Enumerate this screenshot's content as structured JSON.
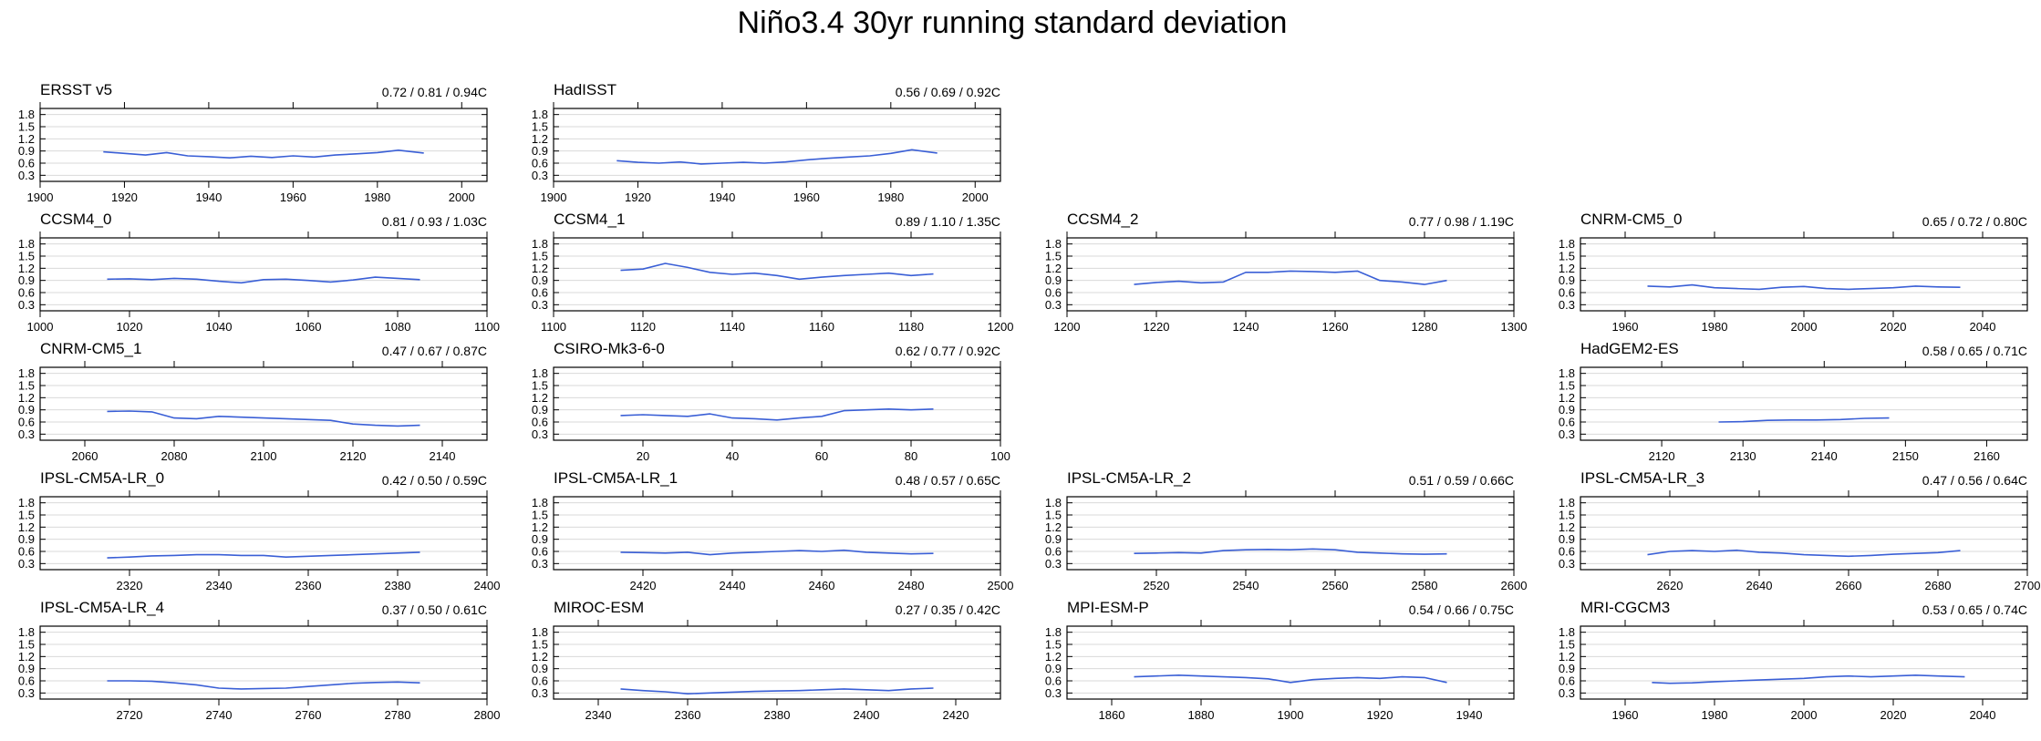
{
  "figure": {
    "title": "Niño3.4 30yr running standard deviation",
    "colors": {
      "line": "#3a5fd6",
      "grid": "#d9d9d9",
      "frame": "#000000"
    }
  },
  "chart_data": [
    {
      "type": "line",
      "panel_index": 0,
      "name": "ERSST v5",
      "stats": "0.72 / 0.81 / 0.94C",
      "ylim": [
        0.15,
        1.95
      ],
      "yticks": [
        "0.3",
        "0.6",
        "0.9",
        "1.2",
        "1.5",
        "1.8"
      ],
      "xlim": [
        1900,
        2006
      ],
      "xticks": [
        "1900",
        "1940",
        "1920",
        "1960",
        "1980",
        "2000"
      ],
      "x": [
        1915,
        1920,
        1925,
        1930,
        1935,
        1940,
        1945,
        1950,
        1955,
        1960,
        1965,
        1970,
        1975,
        1980,
        1985,
        1991
      ],
      "y": [
        0.88,
        0.84,
        0.8,
        0.86,
        0.78,
        0.76,
        0.73,
        0.77,
        0.74,
        0.78,
        0.75,
        0.8,
        0.83,
        0.86,
        0.92,
        0.85
      ]
    },
    {
      "type": "line",
      "panel_index": 1,
      "name": "HadISST",
      "stats": "0.56 / 0.69 / 0.92C",
      "ylim": [
        0.15,
        1.95
      ],
      "yticks": [
        "0.3",
        "0.6",
        "0.9",
        "1.2",
        "1.5",
        "1.8"
      ],
      "xlim": [
        1900,
        2006
      ],
      "xticks": [
        "1900",
        "1920",
        "1940",
        "1960",
        "1980",
        "2000"
      ],
      "x": [
        1915,
        1920,
        1925,
        1930,
        1935,
        1940,
        1945,
        1950,
        1955,
        1960,
        1965,
        1970,
        1975,
        1980,
        1985,
        1991
      ],
      "y": [
        0.66,
        0.62,
        0.6,
        0.63,
        0.58,
        0.6,
        0.62,
        0.6,
        0.63,
        0.68,
        0.72,
        0.75,
        0.78,
        0.84,
        0.93,
        0.85
      ]
    },
    {
      "type": "line",
      "panel_index": 4,
      "name": "CCSM4_0",
      "stats": "0.81 / 0.93 / 1.03C",
      "ylim": [
        0.15,
        1.95
      ],
      "yticks": [
        "0.3",
        "0.6",
        "0.9",
        "1.2",
        "1.5",
        "1.8"
      ],
      "xlim": [
        1000,
        1100
      ],
      "xticks": [
        "1000",
        "1020",
        "1040",
        "1060",
        "1080",
        "1100"
      ],
      "x": [
        1015,
        1020,
        1025,
        1030,
        1035,
        1040,
        1045,
        1050,
        1055,
        1060,
        1065,
        1070,
        1075,
        1080,
        1085
      ],
      "y": [
        0.93,
        0.94,
        0.92,
        0.95,
        0.93,
        0.88,
        0.84,
        0.92,
        0.93,
        0.9,
        0.86,
        0.91,
        0.98,
        0.95,
        0.92
      ]
    },
    {
      "type": "line",
      "panel_index": 5,
      "name": "CCSM4_1",
      "stats": "0.89 / 1.10 / 1.35C",
      "ylim": [
        0.15,
        1.95
      ],
      "yticks": [
        "0.3",
        "0.6",
        "0.9",
        "1.2",
        "1.5",
        "1.8"
      ],
      "xlim": [
        1100,
        1200
      ],
      "xticks": [
        "1100",
        "1120",
        "1140",
        "1160",
        "1180",
        "1200"
      ],
      "x": [
        1115,
        1120,
        1125,
        1130,
        1135,
        1140,
        1145,
        1150,
        1155,
        1160,
        1165,
        1170,
        1175,
        1180,
        1185
      ],
      "y": [
        1.15,
        1.18,
        1.32,
        1.22,
        1.1,
        1.05,
        1.08,
        1.02,
        0.93,
        0.98,
        1.02,
        1.05,
        1.08,
        1.02,
        1.06
      ]
    },
    {
      "type": "line",
      "panel_index": 6,
      "name": "CCSM4_2",
      "stats": "0.77 / 0.98 / 1.19C",
      "ylim": [
        0.15,
        1.95
      ],
      "yticks": [
        "0.3",
        "0.6",
        "0.9",
        "1.2",
        "1.5",
        "1.8"
      ],
      "xlim": [
        1200,
        1300
      ],
      "xticks": [
        "1200",
        "1220",
        "1240",
        "1260",
        "1280",
        "1300"
      ],
      "x": [
        1215,
        1220,
        1225,
        1230,
        1235,
        1240,
        1245,
        1250,
        1255,
        1260,
        1265,
        1270,
        1275,
        1280,
        1285
      ],
      "y": [
        0.8,
        0.85,
        0.88,
        0.84,
        0.86,
        1.1,
        1.1,
        1.13,
        1.12,
        1.1,
        1.13,
        0.9,
        0.86,
        0.8,
        0.9
      ]
    },
    {
      "type": "line",
      "panel_index": 7,
      "name": "CNRM-CM5_0",
      "stats": "0.65 / 0.72 / 0.80C",
      "ylim": [
        0.15,
        1.95
      ],
      "yticks": [
        "0.3",
        "0.6",
        "0.9",
        "1.2",
        "1.5",
        "1.8"
      ],
      "xlim": [
        1950,
        2050
      ],
      "xticks": [
        "1960",
        "1980",
        "2000",
        "2020",
        "2040"
      ],
      "x": [
        1965,
        1970,
        1975,
        1980,
        1985,
        1990,
        1995,
        2000,
        2005,
        2010,
        2015,
        2020,
        2025,
        2030,
        2035
      ],
      "y": [
        0.76,
        0.74,
        0.79,
        0.72,
        0.7,
        0.68,
        0.73,
        0.75,
        0.7,
        0.68,
        0.7,
        0.72,
        0.76,
        0.74,
        0.73
      ]
    },
    {
      "type": "line",
      "panel_index": 8,
      "name": "CNRM-CM5_1",
      "stats": "0.47 / 0.67 / 0.87C",
      "ylim": [
        0.15,
        1.95
      ],
      "yticks": [
        "0.3",
        "0.6",
        "0.9",
        "1.2",
        "1.5",
        "1.8"
      ],
      "xlim": [
        2050,
        2150
      ],
      "xticks": [
        "2060",
        "2080",
        "2100",
        "2120",
        "2140"
      ],
      "x": [
        2065,
        2070,
        2075,
        2080,
        2085,
        2090,
        2095,
        2100,
        2105,
        2110,
        2115,
        2120,
        2125,
        2130,
        2135
      ],
      "y": [
        0.86,
        0.87,
        0.85,
        0.7,
        0.68,
        0.74,
        0.72,
        0.7,
        0.68,
        0.66,
        0.64,
        0.55,
        0.52,
        0.5,
        0.52
      ]
    },
    {
      "type": "line",
      "panel_index": 9,
      "name": "CSIRO-Mk3-6-0",
      "stats": "0.62 / 0.77 / 0.92C",
      "ylim": [
        0.15,
        1.95
      ],
      "yticks": [
        "0.3",
        "0.6",
        "0.9",
        "1.2",
        "1.5",
        "1.8"
      ],
      "xlim": [
        0,
        100
      ],
      "xticks": [
        "20",
        "40",
        "60",
        "80",
        "100"
      ],
      "x": [
        15,
        20,
        25,
        30,
        35,
        40,
        45,
        50,
        55,
        60,
        65,
        70,
        75,
        80,
        85
      ],
      "y": [
        0.76,
        0.78,
        0.76,
        0.74,
        0.8,
        0.7,
        0.68,
        0.65,
        0.7,
        0.74,
        0.88,
        0.9,
        0.92,
        0.9,
        0.92
      ]
    },
    {
      "type": "line",
      "panel_index": 11,
      "name": "HadGEM2-ES",
      "stats": "0.58 / 0.65 / 0.71C",
      "ylim": [
        0.15,
        1.95
      ],
      "yticks": [
        "0.3",
        "0.6",
        "0.9",
        "1.2",
        "1.5",
        "1.8"
      ],
      "xlim": [
        2110,
        2165
      ],
      "xticks": [
        "2120",
        "2130",
        "2140",
        "2150",
        "2160"
      ],
      "x": [
        2127,
        2130,
        2133,
        2136,
        2139,
        2142,
        2145,
        2148
      ],
      "y": [
        0.6,
        0.61,
        0.64,
        0.65,
        0.65,
        0.66,
        0.69,
        0.7
      ]
    },
    {
      "type": "line",
      "panel_index": 12,
      "name": "IPSL-CM5A-LR_0",
      "stats": "0.42 / 0.50 / 0.59C",
      "ylim": [
        0.15,
        1.95
      ],
      "yticks": [
        "0.3",
        "0.6",
        "0.9",
        "1.2",
        "1.5",
        "1.8"
      ],
      "xlim": [
        2300,
        2400
      ],
      "xticks": [
        "2320",
        "2340",
        "2360",
        "2380",
        "2400"
      ],
      "x": [
        2315,
        2320,
        2325,
        2330,
        2335,
        2340,
        2345,
        2350,
        2355,
        2360,
        2365,
        2370,
        2375,
        2380,
        2385
      ],
      "y": [
        0.44,
        0.46,
        0.49,
        0.5,
        0.52,
        0.52,
        0.5,
        0.5,
        0.46,
        0.48,
        0.5,
        0.52,
        0.54,
        0.56,
        0.58
      ]
    },
    {
      "type": "line",
      "panel_index": 13,
      "name": "IPSL-CM5A-LR_1",
      "stats": "0.48 / 0.57 / 0.65C",
      "ylim": [
        0.15,
        1.95
      ],
      "yticks": [
        "0.3",
        "0.6",
        "0.9",
        "1.2",
        "1.5",
        "1.8"
      ],
      "xlim": [
        2400,
        2500
      ],
      "xticks": [
        "2420",
        "2440",
        "2460",
        "2480",
        "2500"
      ],
      "x": [
        2415,
        2420,
        2425,
        2430,
        2435,
        2440,
        2445,
        2450,
        2455,
        2460,
        2465,
        2470,
        2475,
        2480,
        2485
      ],
      "y": [
        0.58,
        0.57,
        0.56,
        0.58,
        0.52,
        0.56,
        0.58,
        0.6,
        0.62,
        0.6,
        0.63,
        0.58,
        0.56,
        0.54,
        0.55
      ]
    },
    {
      "type": "line",
      "panel_index": 14,
      "name": "IPSL-CM5A-LR_2",
      "stats": "0.51 / 0.59 / 0.66C",
      "ylim": [
        0.15,
        1.95
      ],
      "yticks": [
        "0.3",
        "0.6",
        "0.9",
        "1.2",
        "1.5",
        "1.8"
      ],
      "xlim": [
        2500,
        2600
      ],
      "xticks": [
        "2520",
        "2540",
        "2560",
        "2580",
        "2600"
      ],
      "x": [
        2515,
        2520,
        2525,
        2530,
        2535,
        2540,
        2545,
        2550,
        2555,
        2560,
        2565,
        2570,
        2575,
        2580,
        2585
      ],
      "y": [
        0.55,
        0.56,
        0.57,
        0.56,
        0.62,
        0.64,
        0.65,
        0.64,
        0.66,
        0.64,
        0.58,
        0.56,
        0.54,
        0.53,
        0.54
      ]
    },
    {
      "type": "line",
      "panel_index": 15,
      "name": "IPSL-CM5A-LR_3",
      "stats": "0.47 / 0.56 / 0.64C",
      "ylim": [
        0.15,
        1.95
      ],
      "yticks": [
        "0.3",
        "0.6",
        "0.9",
        "1.2",
        "1.5",
        "1.8"
      ],
      "xlim": [
        2600,
        2700
      ],
      "xticks": [
        "2620",
        "2640",
        "2660",
        "2680",
        "2700"
      ],
      "x": [
        2615,
        2620,
        2625,
        2630,
        2635,
        2640,
        2645,
        2650,
        2655,
        2660,
        2665,
        2670,
        2675,
        2680,
        2685
      ],
      "y": [
        0.52,
        0.6,
        0.62,
        0.6,
        0.63,
        0.58,
        0.56,
        0.52,
        0.5,
        0.48,
        0.5,
        0.53,
        0.55,
        0.57,
        0.62
      ]
    },
    {
      "type": "line",
      "panel_index": 16,
      "name": "IPSL-CM5A-LR_4",
      "stats": "0.37 / 0.50 / 0.61C",
      "ylim": [
        0.15,
        1.95
      ],
      "yticks": [
        "0.3",
        "0.6",
        "0.9",
        "1.2",
        "1.5",
        "1.8"
      ],
      "xlim": [
        2700,
        2800
      ],
      "xticks": [
        "2720",
        "2740",
        "2760",
        "2780",
        "2800"
      ],
      "x": [
        2715,
        2720,
        2725,
        2730,
        2735,
        2740,
        2745,
        2750,
        2755,
        2760,
        2765,
        2770,
        2775,
        2780,
        2785
      ],
      "y": [
        0.6,
        0.6,
        0.59,
        0.55,
        0.5,
        0.42,
        0.4,
        0.41,
        0.42,
        0.46,
        0.5,
        0.54,
        0.56,
        0.57,
        0.55
      ]
    },
    {
      "type": "line",
      "panel_index": 17,
      "name": "MIROC-ESM",
      "stats": "0.27 / 0.35 / 0.42C",
      "ylim": [
        0.15,
        1.95
      ],
      "yticks": [
        "0.3",
        "0.6",
        "0.9",
        "1.2",
        "1.5",
        "1.8"
      ],
      "xlim": [
        2330,
        2430
      ],
      "xticks": [
        "2340",
        "2360",
        "2380",
        "2400",
        "2420"
      ],
      "x": [
        2345,
        2350,
        2355,
        2360,
        2365,
        2370,
        2375,
        2380,
        2385,
        2390,
        2395,
        2400,
        2405,
        2410,
        2415
      ],
      "y": [
        0.4,
        0.36,
        0.33,
        0.28,
        0.3,
        0.32,
        0.34,
        0.35,
        0.36,
        0.38,
        0.4,
        0.38,
        0.36,
        0.4,
        0.42
      ]
    },
    {
      "type": "line",
      "panel_index": 18,
      "name": "MPI-ESM-P",
      "stats": "0.54 / 0.66 / 0.75C",
      "ylim": [
        0.15,
        1.95
      ],
      "yticks": [
        "0.3",
        "0.6",
        "0.9",
        "1.2",
        "1.5",
        "1.8"
      ],
      "xlim": [
        1850,
        1950
      ],
      "xticks": [
        "1860",
        "1880",
        "1900",
        "1920",
        "1940"
      ],
      "x": [
        1865,
        1870,
        1875,
        1880,
        1885,
        1890,
        1895,
        1900,
        1905,
        1910,
        1915,
        1920,
        1925,
        1930,
        1935
      ],
      "y": [
        0.7,
        0.72,
        0.74,
        0.72,
        0.7,
        0.68,
        0.65,
        0.56,
        0.63,
        0.66,
        0.68,
        0.66,
        0.7,
        0.68,
        0.56
      ]
    },
    {
      "type": "line",
      "panel_index": 19,
      "name": "MRI-CGCM3",
      "stats": "0.53 / 0.65 / 0.74C",
      "ylim": [
        0.15,
        1.95
      ],
      "yticks": [
        "0.3",
        "0.6",
        "0.9",
        "1.2",
        "1.5",
        "1.8"
      ],
      "xlim": [
        1950,
        2050
      ],
      "xticks": [
        "1960",
        "1980",
        "2000",
        "2020",
        "2040"
      ],
      "x": [
        1966,
        1970,
        1975,
        1980,
        1985,
        1990,
        1995,
        2000,
        2005,
        2010,
        2015,
        2020,
        2025,
        2030,
        2036
      ],
      "y": [
        0.56,
        0.54,
        0.55,
        0.58,
        0.6,
        0.62,
        0.64,
        0.66,
        0.7,
        0.72,
        0.7,
        0.72,
        0.74,
        0.72,
        0.7
      ]
    }
  ]
}
